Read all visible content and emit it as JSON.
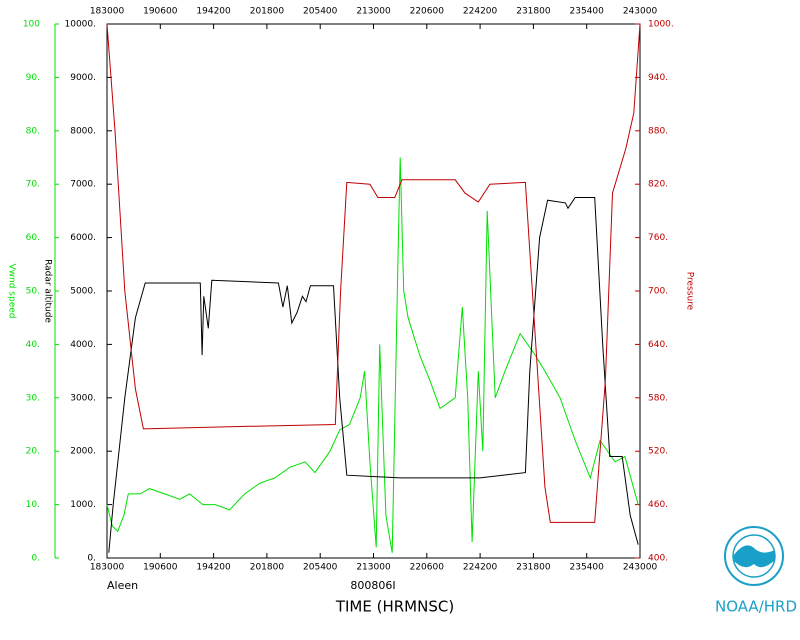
{
  "chart_data": {
    "type": "line",
    "storm": "Aleen",
    "flight": "800806I",
    "xlabel": "TIME (HRMNSC)",
    "credit": "NOAA/HRD",
    "ylabel": "Vwnd speed",
    "y2label": "Radar altitude",
    "y3label": "Pressure",
    "xlim": [
      18.5,
      24.5
    ],
    "xticks": [
      {
        "value": 18.5,
        "label": "183000"
      },
      {
        "value": 19.1,
        "label": "190600"
      },
      {
        "value": 19.7,
        "label": "194200"
      },
      {
        "value": 20.3,
        "label": "201800"
      },
      {
        "value": 20.9,
        "label": "205400"
      },
      {
        "value": 21.5,
        "label": "213000"
      },
      {
        "value": 22.1,
        "label": "220600"
      },
      {
        "value": 22.7,
        "label": "224200"
      },
      {
        "value": 23.3,
        "label": "231800"
      },
      {
        "value": 23.9,
        "label": "235400"
      },
      {
        "value": 24.5,
        "label": "243000"
      }
    ],
    "ylim": [
      0,
      100
    ],
    "yticks": [
      {
        "value": 0,
        "label": "0."
      },
      {
        "value": 10,
        "label": "10."
      },
      {
        "value": 20,
        "label": "20."
      },
      {
        "value": 30,
        "label": "30."
      },
      {
        "value": 40,
        "label": "40."
      },
      {
        "value": 50,
        "label": "50."
      },
      {
        "value": 60,
        "label": "60."
      },
      {
        "value": 70,
        "label": "70."
      },
      {
        "value": 80,
        "label": "80."
      },
      {
        "value": 90,
        "label": "90."
      },
      100
    ],
    "y2lim": [
      0,
      10000
    ],
    "y2ticks": [
      {
        "value": 0,
        "label": "0."
      },
      {
        "value": 1000,
        "label": "1000."
      },
      {
        "value": 2000,
        "label": "2000."
      },
      {
        "value": 3000,
        "label": "3000."
      },
      {
        "value": 4000,
        "label": "4000."
      },
      {
        "value": 5000,
        "label": "5000."
      },
      {
        "value": 6000,
        "label": "6000."
      },
      {
        "value": 7000,
        "label": "7000."
      },
      {
        "value": 8000,
        "label": "8000."
      },
      {
        "value": 9000,
        "label": "9000."
      },
      {
        "value": 10000,
        "label": "10000."
      }
    ],
    "y3lim": [
      400,
      1000
    ],
    "y3ticks": [
      {
        "value": 400,
        "label": "400."
      },
      {
        "value": 460,
        "label": "460."
      },
      {
        "value": 520,
        "label": "520."
      },
      {
        "value": 580,
        "label": "580."
      },
      {
        "value": 640,
        "label": "640."
      },
      {
        "value": 700,
        "label": "700."
      },
      {
        "value": 760,
        "label": "760."
      },
      {
        "value": 820,
        "label": "820."
      },
      {
        "value": 880,
        "label": "880."
      },
      {
        "value": 940,
        "label": "940."
      },
      {
        "value": 1000,
        "label": "1000."
      }
    ],
    "series": [
      {
        "color": "#00e000",
        "axis": "y",
        "x": [
          18.5,
          18.56,
          18.62,
          18.69,
          18.74,
          18.87,
          18.98,
          19.15,
          19.32,
          19.43,
          19.58,
          19.72,
          19.88,
          20.05,
          20.22,
          20.39,
          20.56,
          20.73,
          20.84,
          21.01,
          21.12,
          21.23,
          21.35,
          21.4,
          21.46,
          21.53,
          21.57,
          21.64,
          21.71,
          21.78,
          21.8,
          21.84,
          21.89,
          22.02,
          22.14,
          22.25,
          22.42,
          22.5,
          22.56,
          22.61,
          22.68,
          22.73,
          22.78,
          22.87,
          22.98,
          23.15,
          23.32,
          23.43,
          23.6,
          23.77,
          23.94,
          24.05,
          24.22,
          24.33,
          24.48
        ],
        "values": [
          10,
          6,
          5,
          8,
          12,
          12,
          13,
          12,
          11,
          12,
          10,
          10,
          9,
          12,
          14,
          15,
          17,
          18,
          16,
          20,
          24,
          25,
          30,
          35,
          18,
          2,
          40,
          8,
          1,
          60,
          75,
          50,
          45,
          38,
          33,
          28,
          30,
          47,
          30,
          3,
          35,
          20,
          65,
          30,
          35,
          42,
          38,
          35,
          30,
          22,
          15,
          22,
          18,
          19,
          10
        ]
      },
      {
        "color": "#000000",
        "axis": "y2",
        "x": [
          18.52,
          18.57,
          18.7,
          18.82,
          18.93,
          19.55,
          19.57,
          19.59,
          19.64,
          19.68,
          20.43,
          20.48,
          20.53,
          20.58,
          20.64,
          20.7,
          20.74,
          20.79,
          21.05,
          21.12,
          21.2,
          21.8,
          22.36,
          22.7,
          23.21,
          23.26,
          23.37,
          23.46,
          23.66,
          23.69,
          23.77,
          23.99,
          24.08,
          24.16,
          24.3,
          24.39,
          24.48
        ],
        "values": [
          100,
          1000,
          3000,
          4500,
          5150,
          5150,
          3800,
          4900,
          4300,
          5200,
          5150,
          4700,
          5100,
          4400,
          4600,
          4900,
          4800,
          5100,
          5100,
          3000,
          1550,
          1500,
          1500,
          1500,
          1600,
          3500,
          6000,
          6700,
          6650,
          6550,
          6750,
          6750,
          4000,
          1900,
          1900,
          800,
          250
        ]
      },
      {
        "color": "#c00000",
        "axis": "y3",
        "x": [
          18.5,
          18.59,
          18.7,
          18.82,
          18.91,
          20.11,
          21.07,
          21.13,
          21.2,
          21.46,
          21.55,
          21.74,
          21.82,
          22.42,
          22.53,
          22.68,
          22.81,
          23.21,
          23.32,
          23.43,
          23.49,
          23.99,
          24.11,
          24.19,
          24.34,
          24.43,
          24.5
        ],
        "values": [
          1000,
          880,
          700,
          590,
          545,
          548,
          550,
          700,
          822,
          820,
          805,
          805,
          825,
          825,
          810,
          800,
          820,
          822,
          650,
          480,
          440,
          440,
          600,
          810,
          860,
          900,
          1000
        ]
      }
    ]
  }
}
